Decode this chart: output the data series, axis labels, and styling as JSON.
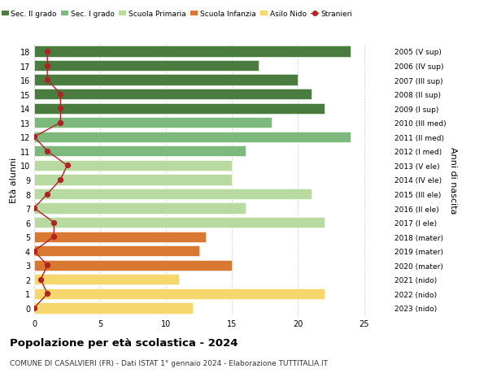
{
  "ages": [
    18,
    17,
    16,
    15,
    14,
    13,
    12,
    11,
    10,
    9,
    8,
    7,
    6,
    5,
    4,
    3,
    2,
    1,
    0
  ],
  "right_labels": [
    "2005 (V sup)",
    "2006 (IV sup)",
    "2007 (III sup)",
    "2008 (II sup)",
    "2009 (I sup)",
    "2010 (III med)",
    "2011 (II med)",
    "2012 (I med)",
    "2013 (V ele)",
    "2014 (IV ele)",
    "2015 (III ele)",
    "2016 (II ele)",
    "2017 (I ele)",
    "2018 (mater)",
    "2019 (mater)",
    "2020 (mater)",
    "2021 (nido)",
    "2022 (nido)",
    "2023 (nido)"
  ],
  "bar_values": [
    24,
    17,
    20,
    21,
    22,
    18,
    24,
    16,
    15,
    15,
    21,
    16,
    22,
    13,
    12.5,
    15,
    11,
    22,
    12
  ],
  "bar_colors": [
    "#4a7c3f",
    "#4a7c3f",
    "#4a7c3f",
    "#4a7c3f",
    "#4a7c3f",
    "#7db87d",
    "#7db87d",
    "#7db87d",
    "#b8d9a0",
    "#b8d9a0",
    "#b8d9a0",
    "#b8d9a0",
    "#b8d9a0",
    "#d97832",
    "#d97832",
    "#d97832",
    "#f5d76e",
    "#f5d76e",
    "#f5d76e"
  ],
  "stranieri_values": [
    1,
    1,
    1,
    2,
    2,
    2,
    0,
    1,
    2.5,
    2,
    1,
    0,
    1.5,
    1.5,
    0,
    1,
    0.5,
    1,
    0
  ],
  "stranieri_color": "#b22222",
  "legend_labels": [
    "Sec. II grado",
    "Sec. I grado",
    "Scuola Primaria",
    "Scuola Infanzia",
    "Asilo Nido",
    "Stranieri"
  ],
  "legend_colors": [
    "#4a7c3f",
    "#7db87d",
    "#b8d9a0",
    "#d97832",
    "#f5d76e",
    "#b22222"
  ],
  "ylabel_left": "Età alunni",
  "ylabel_right": "Anni di nascita",
  "xlim_max": 27,
  "title": "Popolazione per età scolastica - 2024",
  "subtitle": "COMUNE DI CASALVIERI (FR) - Dati ISTAT 1° gennaio 2024 - Elaborazione TUTTITALIA.IT",
  "background_color": "#ffffff",
  "grid_color": "#cccccc"
}
